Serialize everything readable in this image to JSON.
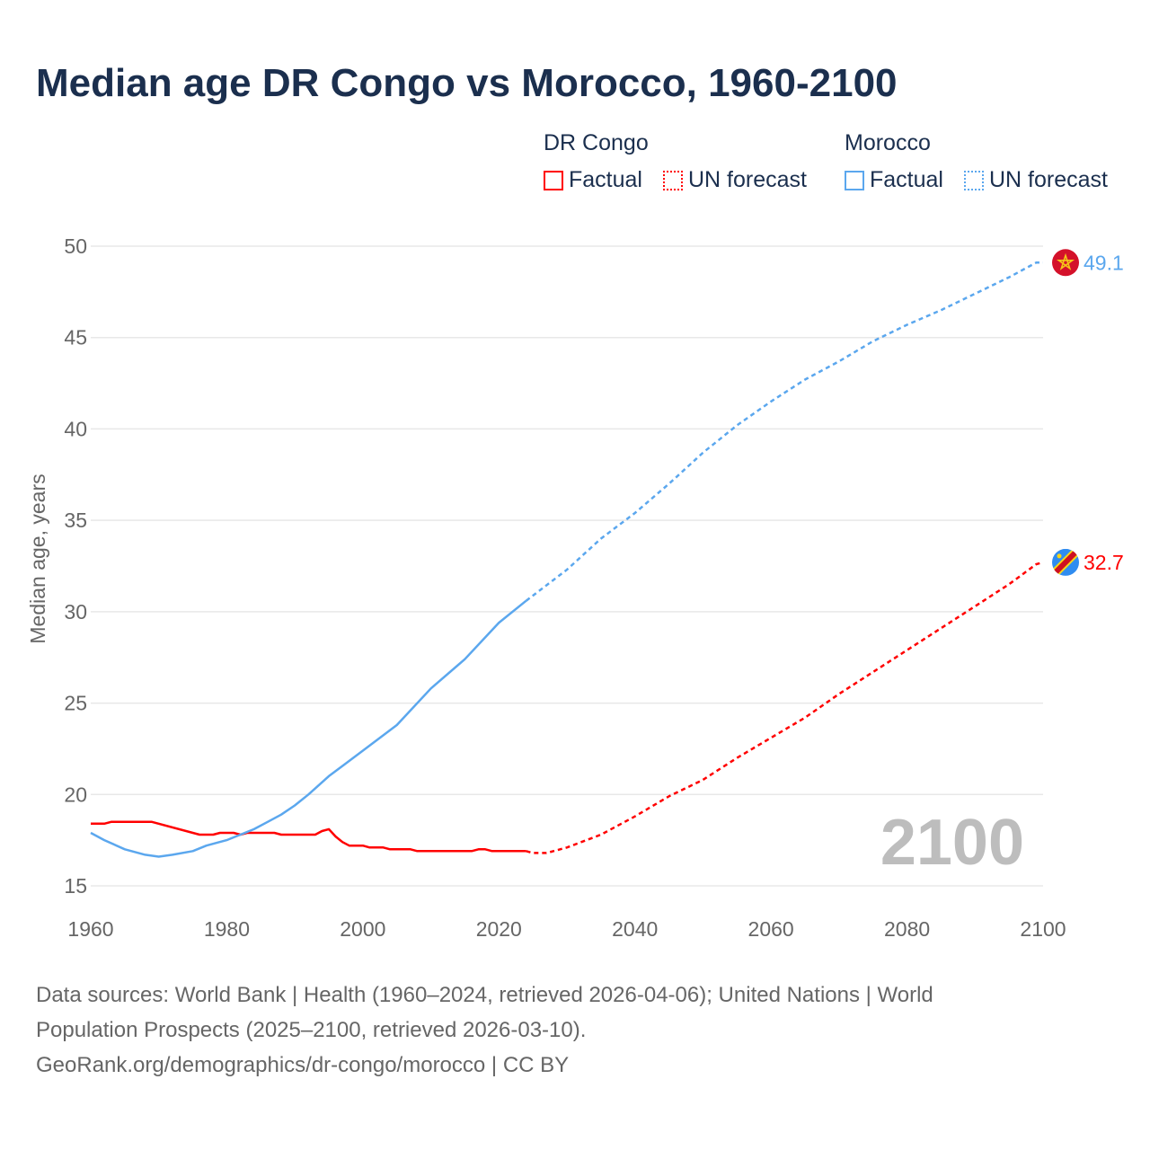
{
  "title": "Median age DR Congo vs Morocco, 1960-2100",
  "legend": {
    "groups": [
      {
        "name": "DR Congo",
        "color": "#ff0000",
        "factual": "Factual",
        "forecast": "UN forecast"
      },
      {
        "name": "Morocco",
        "color": "#5ba7ee",
        "factual": "Factual",
        "forecast": "UN forecast"
      }
    ]
  },
  "watermark_year": "2100",
  "footer": {
    "line1": "Data sources: World Bank | Health (1960–2024, retrieved 2026-04-06); United Nations | World",
    "line2": "Population Prospects (2025–2100, retrieved 2026-03-10).",
    "line3": "GeoRank.org/demographics/dr-congo/morocco | CC BY"
  },
  "chart_data": {
    "type": "line",
    "title": "Median age DR Congo vs Morocco, 1960-2100",
    "xlabel": "",
    "ylabel": "Median age, years",
    "xlim": [
      1960,
      2100
    ],
    "ylim": [
      15,
      50
    ],
    "xticks": [
      1960,
      1980,
      2000,
      2020,
      2040,
      2060,
      2080,
      2100
    ],
    "yticks": [
      15,
      20,
      25,
      30,
      35,
      40,
      45,
      50
    ],
    "grid": true,
    "series": [
      {
        "name": "DR Congo",
        "color": "#ff0000",
        "end_label": "32.7",
        "flag": "dr-congo-flag",
        "factual": [
          [
            1960,
            18.4
          ],
          [
            1962,
            18.4
          ],
          [
            1963,
            18.5
          ],
          [
            1969,
            18.5
          ],
          [
            1976,
            17.8
          ],
          [
            1978,
            17.8
          ],
          [
            1979,
            17.9
          ],
          [
            1981,
            17.9
          ],
          [
            1982,
            17.8
          ],
          [
            1983,
            17.9
          ],
          [
            1987,
            17.9
          ],
          [
            1988,
            17.8
          ],
          [
            1993,
            17.8
          ],
          [
            1994,
            18.0
          ],
          [
            1995,
            18.1
          ],
          [
            1996,
            17.7
          ],
          [
            1997,
            17.4
          ],
          [
            1998,
            17.2
          ],
          [
            2000,
            17.2
          ],
          [
            2001,
            17.1
          ],
          [
            2003,
            17.1
          ],
          [
            2004,
            17.0
          ],
          [
            2007,
            17.0
          ],
          [
            2008,
            16.9
          ],
          [
            2016,
            16.9
          ],
          [
            2017,
            17.0
          ],
          [
            2018,
            17.0
          ],
          [
            2019,
            16.9
          ],
          [
            2024,
            16.9
          ]
        ],
        "forecast": [
          [
            2024,
            16.9
          ],
          [
            2025,
            16.8
          ],
          [
            2027,
            16.8
          ],
          [
            2030,
            17.1
          ],
          [
            2035,
            17.8
          ],
          [
            2040,
            18.8
          ],
          [
            2045,
            19.9
          ],
          [
            2050,
            20.8
          ],
          [
            2055,
            22.0
          ],
          [
            2060,
            23.1
          ],
          [
            2065,
            24.2
          ],
          [
            2070,
            25.5
          ],
          [
            2075,
            26.7
          ],
          [
            2080,
            27.9
          ],
          [
            2085,
            29.1
          ],
          [
            2090,
            30.3
          ],
          [
            2095,
            31.5
          ],
          [
            2099,
            32.6
          ],
          [
            2100,
            32.7
          ]
        ]
      },
      {
        "name": "Morocco",
        "color": "#5ba7ee",
        "end_label": "49.1",
        "flag": "morocco-flag",
        "factual": [
          [
            1960,
            17.9
          ],
          [
            1962,
            17.5
          ],
          [
            1965,
            17.0
          ],
          [
            1968,
            16.7
          ],
          [
            1970,
            16.6
          ],
          [
            1972,
            16.7
          ],
          [
            1975,
            16.9
          ],
          [
            1977,
            17.2
          ],
          [
            1980,
            17.5
          ],
          [
            1982,
            17.8
          ],
          [
            1984,
            18.1
          ],
          [
            1986,
            18.5
          ],
          [
            1988,
            18.9
          ],
          [
            1990,
            19.4
          ],
          [
            1992,
            20.0
          ],
          [
            1995,
            21.0
          ],
          [
            2000,
            22.4
          ],
          [
            2005,
            23.8
          ],
          [
            2010,
            25.8
          ],
          [
            2015,
            27.4
          ],
          [
            2020,
            29.4
          ],
          [
            2024,
            30.6
          ]
        ],
        "forecast": [
          [
            2024,
            30.6
          ],
          [
            2030,
            32.3
          ],
          [
            2035,
            34.0
          ],
          [
            2040,
            35.4
          ],
          [
            2045,
            37.0
          ],
          [
            2050,
            38.7
          ],
          [
            2055,
            40.2
          ],
          [
            2060,
            41.5
          ],
          [
            2065,
            42.7
          ],
          [
            2070,
            43.7
          ],
          [
            2075,
            44.8
          ],
          [
            2080,
            45.7
          ],
          [
            2085,
            46.5
          ],
          [
            2090,
            47.4
          ],
          [
            2095,
            48.3
          ],
          [
            2099,
            49.1
          ],
          [
            2100,
            49.1
          ]
        ]
      }
    ]
  }
}
